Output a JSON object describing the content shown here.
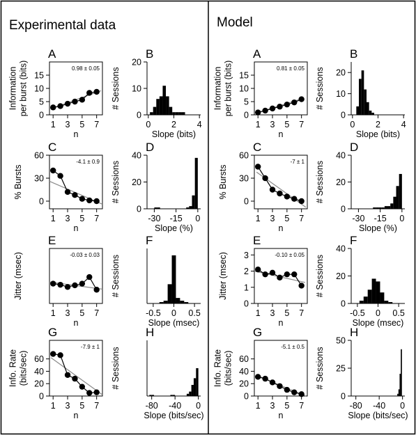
{
  "panels": {
    "left_title": "Experimental data",
    "right_title": "Model"
  },
  "chart_data": [
    {
      "id": "exp-A",
      "type": "line",
      "letter": "A",
      "ylabel": [
        "Information",
        "per burst (bits)"
      ],
      "xlabel": "n",
      "x": [
        1,
        2,
        3,
        4,
        5,
        6,
        7
      ],
      "y": [
        2.8,
        3.3,
        4.2,
        5.0,
        5.7,
        8.3,
        8.7
      ],
      "fit": {
        "x0": 1,
        "y0": 2.6,
        "x1": 7.6,
        "y1": 9.1
      },
      "annotation": "0.98 ± 0.05",
      "xlim": [
        0.5,
        7.8
      ],
      "ylim": [
        0,
        20
      ],
      "xticks": [
        1,
        3,
        5,
        7
      ],
      "yticks": [
        0,
        5,
        10,
        15
      ]
    },
    {
      "id": "exp-B",
      "type": "bar",
      "letter": "B",
      "ylabel": [
        "# Sessions"
      ],
      "xlabel": "Slope (bits)",
      "bin_width": 0.25,
      "bins": [
        0.25,
        0.5,
        0.75,
        1.0,
        1.25,
        1.5,
        1.75,
        2.0,
        2.25,
        2.5,
        2.75
      ],
      "values": [
        1,
        3,
        6,
        7,
        11,
        7,
        3,
        1,
        1,
        1,
        1
      ],
      "xlim": [
        -0.1,
        4.1
      ],
      "ylim": [
        0,
        20
      ],
      "xticks": [
        0,
        2,
        4
      ],
      "yticks": [
        0,
        10,
        20
      ]
    },
    {
      "id": "exp-C",
      "type": "line",
      "letter": "C",
      "ylabel": [
        "% Bursts"
      ],
      "xlabel": "n",
      "x": [
        1,
        2,
        3,
        4,
        5,
        6,
        7
      ],
      "y": [
        40,
        33,
        12,
        8,
        3,
        1,
        0
      ],
      "fit": {
        "x0": 0.5,
        "y0": 26,
        "x1": 7.8,
        "y1": -4
      },
      "annotation": "-4.1 ± 0.9",
      "xlim": [
        0.5,
        7.8
      ],
      "ylim": [
        -10,
        60
      ],
      "xticks": [
        1,
        3,
        5,
        7
      ],
      "yticks": [
        0,
        30,
        60
      ]
    },
    {
      "id": "exp-D",
      "type": "bar",
      "letter": "D",
      "ylabel": [
        "# Sessions"
      ],
      "xlabel": "Slope (%)",
      "bin_width": 2,
      "bins": [
        -31,
        -29,
        -27,
        -25,
        -23,
        -21,
        -19,
        -17,
        -15,
        -13,
        -11,
        -9,
        -7,
        -5,
        -3,
        -1
      ],
      "values": [
        0,
        1,
        1,
        0,
        0,
        0,
        0,
        0,
        0,
        0,
        0,
        0,
        1,
        2,
        10,
        38
      ],
      "xlim": [
        -35,
        2
      ],
      "ylim": [
        0,
        40
      ],
      "xticks": [
        -30,
        -15,
        0
      ],
      "yticks": [
        0,
        20,
        40
      ]
    },
    {
      "id": "exp-E",
      "type": "line",
      "letter": "E",
      "ylabel": [
        "Jitter (msec)"
      ],
      "xlabel": "n",
      "x": [
        1,
        2,
        3,
        4,
        5,
        6,
        7
      ],
      "y": [
        0.72,
        0.68,
        0.6,
        0.66,
        0.72,
        0.96,
        0.5
      ],
      "fit": {
        "x0": 0.5,
        "y0": 0.78,
        "x1": 7.8,
        "y1": 0.52
      },
      "annotation": "-0.03 ± 0.03",
      "xlim": [
        0.5,
        7.8
      ],
      "ylim": [
        0,
        2
      ],
      "xticks": [
        1,
        3,
        5,
        7
      ],
      "yticks": []
    },
    {
      "id": "exp-F",
      "type": "bar",
      "letter": "F",
      "ylabel": [
        "# Sessions"
      ],
      "xlabel": "Slope (msec)",
      "bin_width": 0.1,
      "bins": [
        -0.3,
        -0.2,
        -0.1,
        0.0,
        0.1,
        0.2,
        0.3
      ],
      "values": [
        1,
        2,
        14,
        35,
        4,
        2,
        1
      ],
      "xlim": [
        -0.65,
        0.65
      ],
      "ylim": [
        0,
        40
      ],
      "xticks": [
        -0.5,
        0.0,
        0.5
      ],
      "yticks": []
    },
    {
      "id": "exp-G",
      "type": "line",
      "letter": "G",
      "ylabel": [
        "Info. Rate",
        "(bits/sec)"
      ],
      "xlabel": "n",
      "x": [
        1,
        2,
        3,
        4,
        5,
        6,
        7
      ],
      "y": [
        68,
        66,
        34,
        28,
        15,
        5,
        6
      ],
      "fit": {
        "x0": 0.7,
        "y0": 62,
        "x1": 7.8,
        "y1": 2
      },
      "annotation": "-7.9 ± 1",
      "xlim": [
        0.5,
        7.8
      ],
      "ylim": [
        0,
        90
      ],
      "xticks": [
        1,
        3,
        5,
        7
      ],
      "yticks": [
        0,
        20,
        40,
        60
      ]
    },
    {
      "id": "exp-H",
      "type": "bar",
      "letter": "H",
      "ylabel": [
        "# Sessions"
      ],
      "xlabel": "Slope (bits/sec)",
      "bin_width": 4,
      "bins": [
        -82,
        -78,
        -46,
        -42,
        -18,
        -14,
        -10,
        -6,
        -2
      ],
      "values": [
        1,
        1,
        1,
        1,
        2,
        4,
        10,
        16,
        25
      ],
      "xlim": [
        -88,
        4
      ],
      "ylim": [
        0,
        50
      ],
      "xticks": [
        -80,
        -40,
        0
      ],
      "yticks": []
    },
    {
      "id": "mod-A",
      "type": "line",
      "letter": "A",
      "ylabel": [
        "Information",
        "per burst (bits)"
      ],
      "xlabel": "n",
      "x": [
        1,
        2,
        3,
        4,
        5,
        6,
        7
      ],
      "y": [
        0.9,
        1.6,
        2.4,
        3.1,
        3.9,
        4.7,
        5.9
      ],
      "fit": {
        "x0": 0.8,
        "y0": 0.7,
        "x1": 7.3,
        "y1": 6.3
      },
      "annotation": "0.81 ± 0.05",
      "xlim": [
        0.5,
        7.8
      ],
      "ylim": [
        0,
        20
      ],
      "xticks": [
        1,
        3,
        5,
        7
      ],
      "yticks": [
        0,
        5,
        10,
        15
      ]
    },
    {
      "id": "mod-B",
      "type": "bar",
      "letter": "B",
      "ylabel": [
        "# Sessions"
      ],
      "xlabel": "Slope (bits)",
      "bin_width": 0.2,
      "bins": [
        0.4,
        0.6,
        0.8,
        1.0,
        1.2,
        1.4,
        1.6
      ],
      "values": [
        4,
        17,
        21,
        12,
        6,
        2,
        1
      ],
      "xlim": [
        -0.1,
        4.1
      ],
      "ylim": [
        0,
        25
      ],
      "xticks": [
        0,
        2,
        4
      ],
      "yticks": [
        0,
        10,
        20
      ]
    },
    {
      "id": "mod-C",
      "type": "line",
      "letter": "C",
      "ylabel": [
        "% Bursts"
      ],
      "xlabel": "n",
      "x": [
        1,
        2,
        3,
        4,
        5,
        6,
        7
      ],
      "y": [
        45,
        30,
        15,
        10,
        6,
        3,
        0
      ],
      "fit": {
        "x0": 0.8,
        "y0": 38,
        "x1": 7.6,
        "y1": -8
      },
      "annotation": "-7 ± 1",
      "xlim": [
        0.5,
        7.8
      ],
      "ylim": [
        -10,
        60
      ],
      "xticks": [
        1,
        3,
        5,
        7
      ],
      "yticks": [
        0,
        30,
        60
      ]
    },
    {
      "id": "mod-D",
      "type": "bar",
      "letter": "D",
      "ylabel": [
        "# Sessions"
      ],
      "xlabel": "Slope (%)",
      "bin_width": 2,
      "bins": [
        -19,
        -17,
        -15,
        -13,
        -11,
        -9,
        -7,
        -5,
        -3,
        -1
      ],
      "values": [
        1,
        1,
        1,
        1,
        2,
        2,
        4,
        9,
        17,
        26
      ],
      "xlim": [
        -35,
        2
      ],
      "ylim": [
        0,
        40
      ],
      "xticks": [
        -30,
        -15,
        0
      ],
      "yticks": [
        0,
        20,
        40
      ]
    },
    {
      "id": "mod-E",
      "type": "line",
      "letter": "E",
      "ylabel": [
        "Jitter (msec)"
      ],
      "xlabel": "n",
      "x": [
        1,
        2,
        3,
        4,
        5,
        6,
        7
      ],
      "y": [
        2.1,
        1.8,
        1.9,
        1.6,
        1.8,
        1.8,
        1.1
      ],
      "fit": {
        "x0": 0.5,
        "y0": 2.0,
        "x1": 7.5,
        "y1": 1.3
      },
      "annotation": "-0.10 ± 0.05",
      "xlim": [
        0.5,
        7.8
      ],
      "ylim": [
        0,
        3.4
      ],
      "xticks": [
        1,
        3,
        5,
        7
      ],
      "yticks": [
        0,
        1,
        2,
        3
      ]
    },
    {
      "id": "mod-F",
      "type": "bar",
      "letter": "F",
      "ylabel": [
        "# Sessions"
      ],
      "xlabel": "Slope (msec)",
      "bin_width": 0.1,
      "bins": [
        -0.4,
        -0.3,
        -0.2,
        -0.1,
        0.0,
        0.1,
        0.2,
        0.3
      ],
      "values": [
        2,
        5,
        10,
        18,
        16,
        8,
        2,
        1
      ],
      "xlim": [
        -0.65,
        0.65
      ],
      "ylim": [
        0,
        40
      ],
      "xticks": [
        -0.5,
        0.0,
        0.5
      ],
      "yticks": [
        0,
        20,
        40
      ]
    },
    {
      "id": "mod-G",
      "type": "line",
      "letter": "G",
      "ylabel": [
        "Info. Rate",
        "(bits/sec)"
      ],
      "xlabel": "n",
      "x": [
        1,
        2,
        3,
        4,
        5,
        6,
        7
      ],
      "y": [
        31,
        28,
        22,
        16,
        10,
        6,
        3
      ],
      "fit": {
        "x0": 0.7,
        "y0": 34,
        "x1": 7.6,
        "y1": 0
      },
      "annotation": "-5.1 ± 0.5",
      "xlim": [
        0.5,
        7.8
      ],
      "ylim": [
        0,
        90
      ],
      "xticks": [
        1,
        3,
        5,
        7
      ],
      "yticks": [
        0,
        20,
        40,
        60
      ]
    },
    {
      "id": "mod-H",
      "type": "bar",
      "letter": "H",
      "ylabel": [
        "# Sessions"
      ],
      "xlabel": "Slope (bits/sec)",
      "bin_width": 2,
      "bins": [
        -8,
        -6,
        -4,
        -2
      ],
      "values": [
        2,
        6,
        20,
        42
      ],
      "xlim": [
        -88,
        4
      ],
      "ylim": [
        0,
        50
      ],
      "xticks": [
        -80,
        -40,
        0
      ],
      "yticks": [
        0,
        25,
        50
      ]
    }
  ]
}
